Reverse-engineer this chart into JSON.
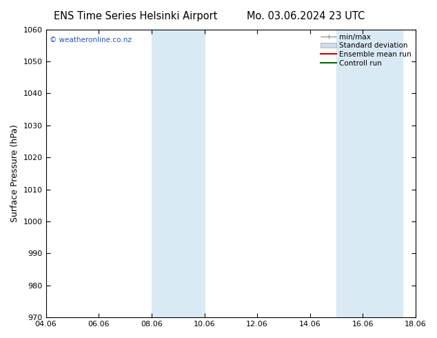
{
  "title_left": "ENS Time Series Helsinki Airport",
  "title_right": "Mo. 03.06.2024 23 UTC",
  "ylabel": "Surface Pressure (hPa)",
  "ylim": [
    970,
    1060
  ],
  "yticks": [
    970,
    980,
    990,
    1000,
    1010,
    1020,
    1030,
    1040,
    1050,
    1060
  ],
  "xlim_start": 0,
  "xlim_end": 14,
  "xtick_labels": [
    "04.06",
    "06.06",
    "08.06",
    "10.06",
    "12.06",
    "14.06",
    "16.06",
    "18.06"
  ],
  "xtick_positions": [
    0,
    2,
    4,
    6,
    8,
    10,
    12,
    14
  ],
  "shade_bands": [
    {
      "xstart": 4,
      "xend": 6
    },
    {
      "xstart": 11,
      "xend": 13.5
    }
  ],
  "shade_color": "#daeaf5",
  "watermark": "© weatheronline.co.nz",
  "legend_labels": [
    "min/max",
    "Standard deviation",
    "Ensemble mean run",
    "Controll run"
  ],
  "background_color": "#ffffff",
  "title_fontsize": 10.5,
  "axis_fontsize": 9,
  "tick_fontsize": 8
}
